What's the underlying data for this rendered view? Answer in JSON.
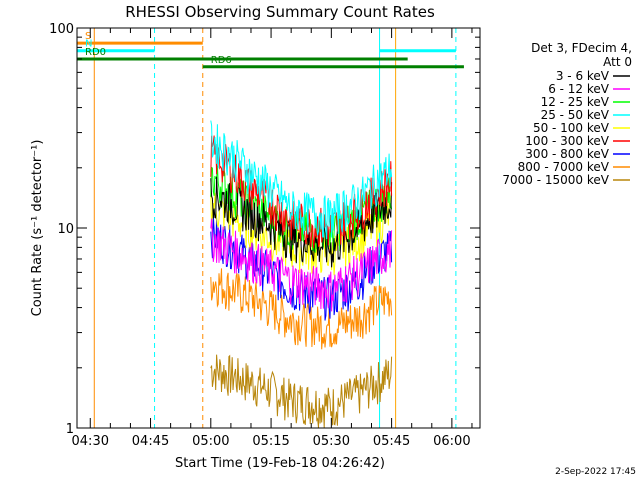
{
  "chart_data": {
    "type": "line",
    "title": "RHESSI Observing Summary Count Rates",
    "xlabel": "Start Time (19-Feb-18 04:26:42)",
    "ylabel": "Count Rate (s⁻¹ detector⁻¹)",
    "x_range": [
      "04:26:42",
      "06:07:00"
    ],
    "y_scale": "log",
    "ylim": [
      1,
      100
    ],
    "x_ticks": [
      "04:30",
      "04:45",
      "05:00",
      "05:15",
      "05:30",
      "05:45",
      "06:00"
    ],
    "y_ticks": [
      "1",
      "10",
      "100"
    ],
    "legend": {
      "placement": "right",
      "header": [
        "Det 3, FDecim 4,",
        "Att 0"
      ]
    },
    "series": [
      {
        "name": "3 - 6 keV",
        "color": "#000000",
        "time": [
          "05:00",
          "05:10",
          "05:20",
          "05:30",
          "05:37",
          "05:41",
          "05:45"
        ],
        "values": [
          15,
          12,
          9,
          8,
          10,
          12,
          14
        ]
      },
      {
        "name": "6 - 12 keV",
        "color": "#ff00ff",
        "time": [
          "05:00",
          "05:10",
          "05:20",
          "05:30",
          "05:37",
          "05:41",
          "05:45"
        ],
        "values": [
          9,
          7,
          5.5,
          5,
          6,
          7,
          8
        ]
      },
      {
        "name": "12 - 25 keV",
        "color": "#00ff00",
        "time": [
          "05:00",
          "05:10",
          "05:20",
          "05:30",
          "05:37",
          "05:41",
          "05:45"
        ],
        "values": [
          18,
          13,
          10,
          9.5,
          11.5,
          13.5,
          15
        ]
      },
      {
        "name": "25 - 50 keV",
        "color": "#00ffff",
        "time": [
          "05:00",
          "05:10",
          "05:20",
          "05:30",
          "05:37",
          "05:41",
          "05:45"
        ],
        "values": [
          28,
          19,
          12.5,
          11.5,
          14,
          17,
          20
        ]
      },
      {
        "name": "50 - 100 keV",
        "color": "#ffff00",
        "time": [
          "05:00",
          "05:10",
          "05:20",
          "05:30",
          "05:37",
          "05:41",
          "05:45"
        ],
        "values": [
          13,
          10,
          8,
          7.5,
          9,
          10.5,
          12
        ]
      },
      {
        "name": "100 - 300 keV",
        "color": "#ff0000",
        "time": [
          "05:00",
          "05:10",
          "05:20",
          "05:30",
          "05:37",
          "05:41",
          "05:45"
        ],
        "values": [
          24,
          16,
          11,
          10,
          12.5,
          15,
          17.5
        ]
      },
      {
        "name": "300 - 800 keV",
        "color": "#0000ff",
        "time": [
          "05:00",
          "05:10",
          "05:20",
          "05:30",
          "05:37",
          "05:41",
          "05:45"
        ],
        "values": [
          9.5,
          7,
          5,
          4.5,
          5.5,
          7,
          8
        ]
      },
      {
        "name": "800 - 7000 keV",
        "color": "#ff8c00",
        "time": [
          "05:00",
          "05:10",
          "05:20",
          "05:30",
          "05:37",
          "05:41",
          "05:45"
        ],
        "values": [
          5.5,
          4.5,
          3.5,
          3.2,
          3.6,
          4.2,
          4.6
        ]
      },
      {
        "name": "7000 - 15000 keV",
        "color": "#b8860b",
        "time": [
          "05:00",
          "05:10",
          "05:20",
          "05:30",
          "05:37",
          "05:41",
          "05:45"
        ],
        "values": [
          2,
          1.7,
          1.4,
          1.3,
          1.5,
          1.7,
          1.9
        ]
      }
    ],
    "vertical_lines": [
      {
        "time": "04:31",
        "color": "#ff8c00",
        "style": "solid"
      },
      {
        "time": "04:46",
        "color": "#00ffff",
        "style": "dashed"
      },
      {
        "time": "04:58",
        "color": "#ff8c00",
        "style": "dashed"
      },
      {
        "time": "05:42",
        "color": "#00ffff",
        "style": "solid"
      },
      {
        "time": "05:46",
        "color": "#ffa500",
        "style": "solid"
      },
      {
        "time": "06:01",
        "color": "#00ffff",
        "style": "dashed"
      }
    ],
    "status_bars": [
      {
        "label": "S",
        "color": "#ff8c00",
        "start": "04:26:42",
        "end": "04:58",
        "level": 84
      },
      {
        "label": "N",
        "color": "#00ffff",
        "start": "04:26:42",
        "end": "04:46",
        "level": 77
      },
      {
        "label": "",
        "color": "#00ffff",
        "start": "05:42",
        "end": "06:01",
        "level": 77
      },
      {
        "label": "RD0",
        "color": "#008000",
        "start": "04:26:42",
        "end": "05:49",
        "level": 70
      },
      {
        "label": "RD6",
        "color": "#008000",
        "start": "04:58",
        "end": "06:03",
        "level": 64
      }
    ]
  },
  "footer": {
    "date": "2-Sep-2022 17:45"
  }
}
